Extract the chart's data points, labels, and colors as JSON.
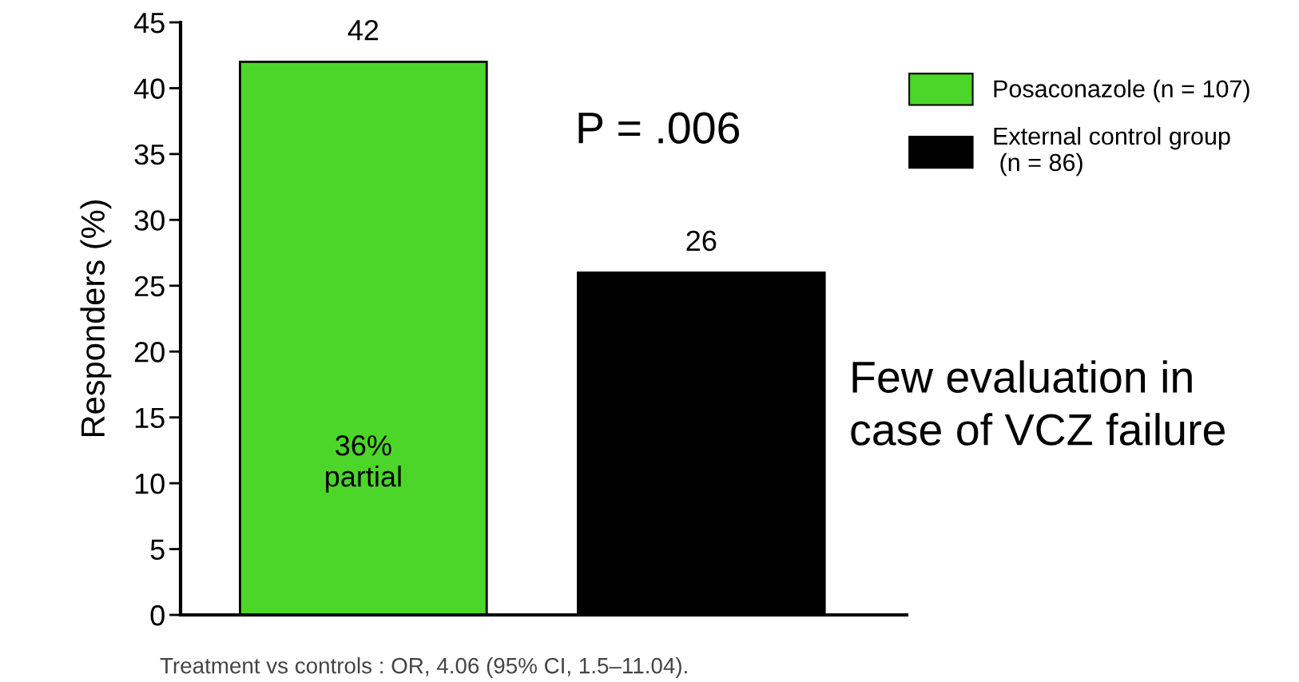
{
  "chart_data": {
    "type": "bar",
    "ylabel": "Responders (%)",
    "categories": [
      null,
      null
    ],
    "series": [
      {
        "name": "Posaconazole (n = 107)",
        "color": "#4cd62a",
        "values": [
          42,
          null
        ]
      },
      {
        "name": "External control group\n (n = 86)",
        "color": "#000000",
        "values": [
          null,
          26
        ]
      }
    ],
    "ylim": [
      0,
      45
    ],
    "yticks": [
      0,
      5,
      10,
      15,
      20,
      25,
      30,
      35,
      40,
      45
    ],
    "tick_labels": "y",
    "data_labels": true,
    "grid": false,
    "legend": "right",
    "annotations": [
      "36%\npartial",
      "P = .006",
      "Few evaluation in\ncase of VCZ failure",
      "Treatment vs controls : OR, 4.06 (95% CI, 1.5–11.04)."
    ]
  }
}
